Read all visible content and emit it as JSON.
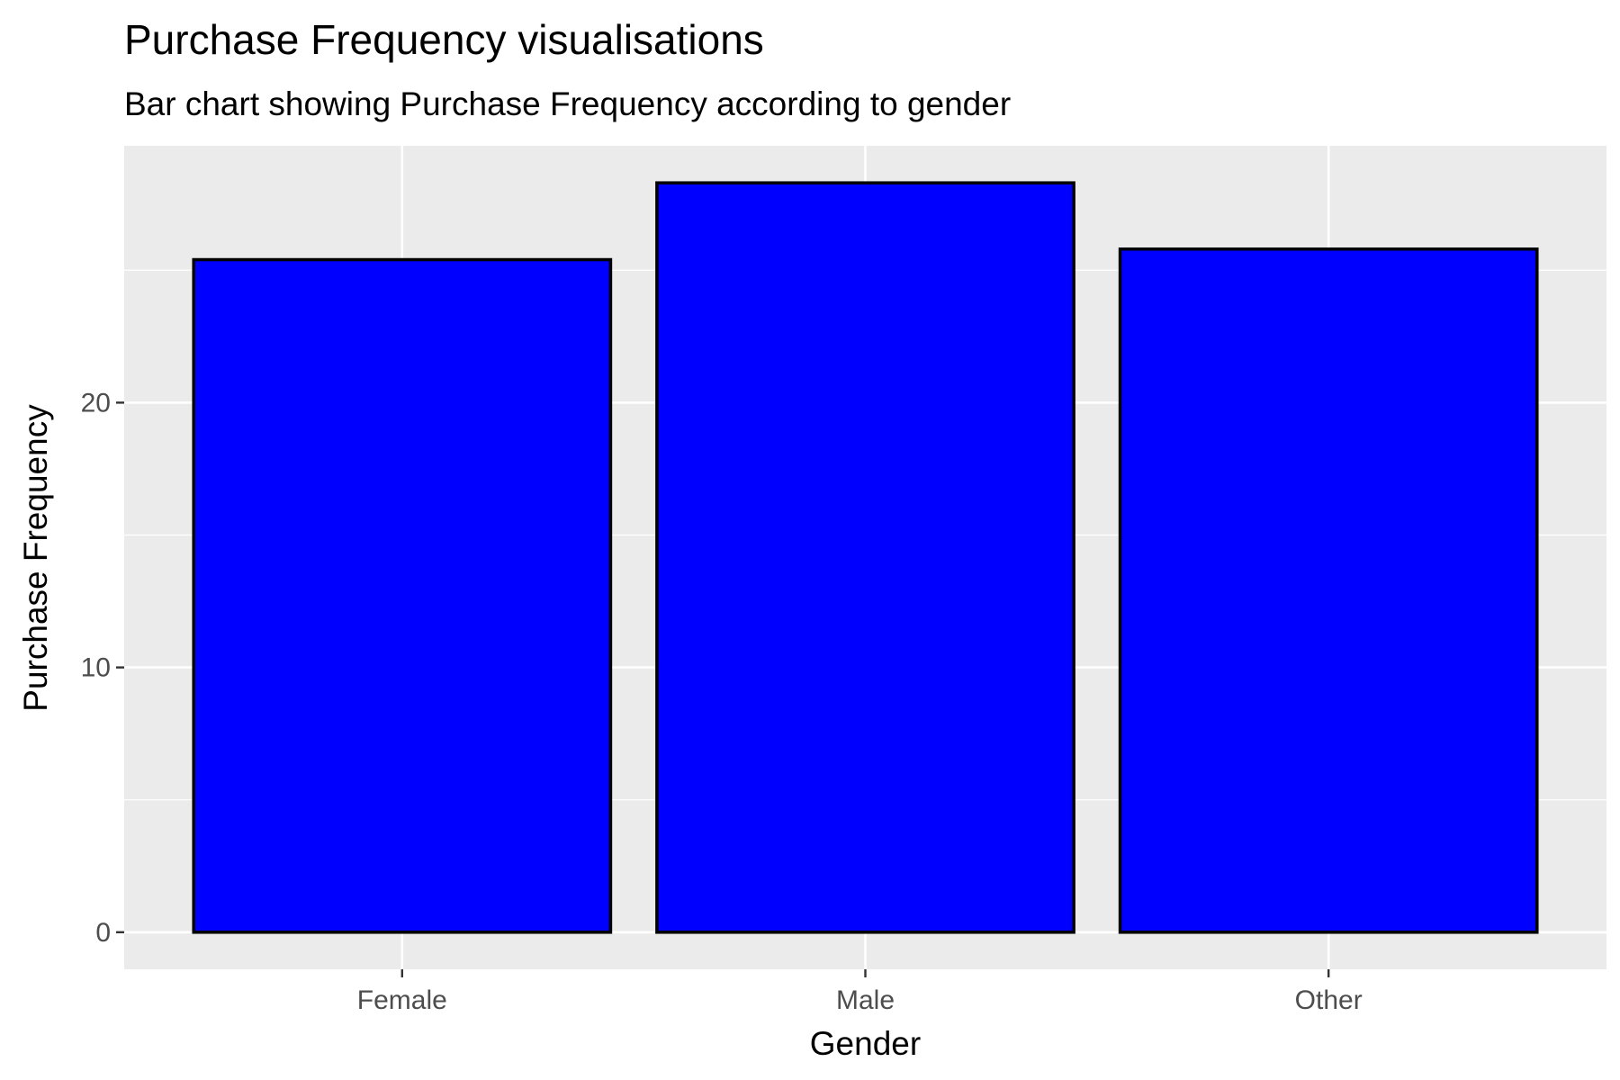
{
  "chart_data": {
    "type": "bar",
    "title": "Purchase Frequency visualisations",
    "subtitle": "Bar chart showing Purchase Frequency according to gender",
    "xlabel": "Gender",
    "ylabel": "Purchase Frequency",
    "categories": [
      "Female",
      "Male",
      "Other"
    ],
    "values": [
      25.4,
      28.3,
      25.8
    ],
    "ylim": [
      -1.4,
      29.7
    ],
    "y_ticks": [
      0,
      10,
      20
    ],
    "y_tick_labels": [
      "0",
      "10",
      "20"
    ],
    "y_minor_ticks": [
      5,
      15,
      25
    ],
    "grid": true,
    "colors": {
      "panel_background": "#ebebeb",
      "grid": "#ffffff",
      "bar_fill": "#0000ff",
      "bar_outline": "#000000",
      "tick_text": "#4d4d4d",
      "tick_mark": "#333333"
    }
  }
}
